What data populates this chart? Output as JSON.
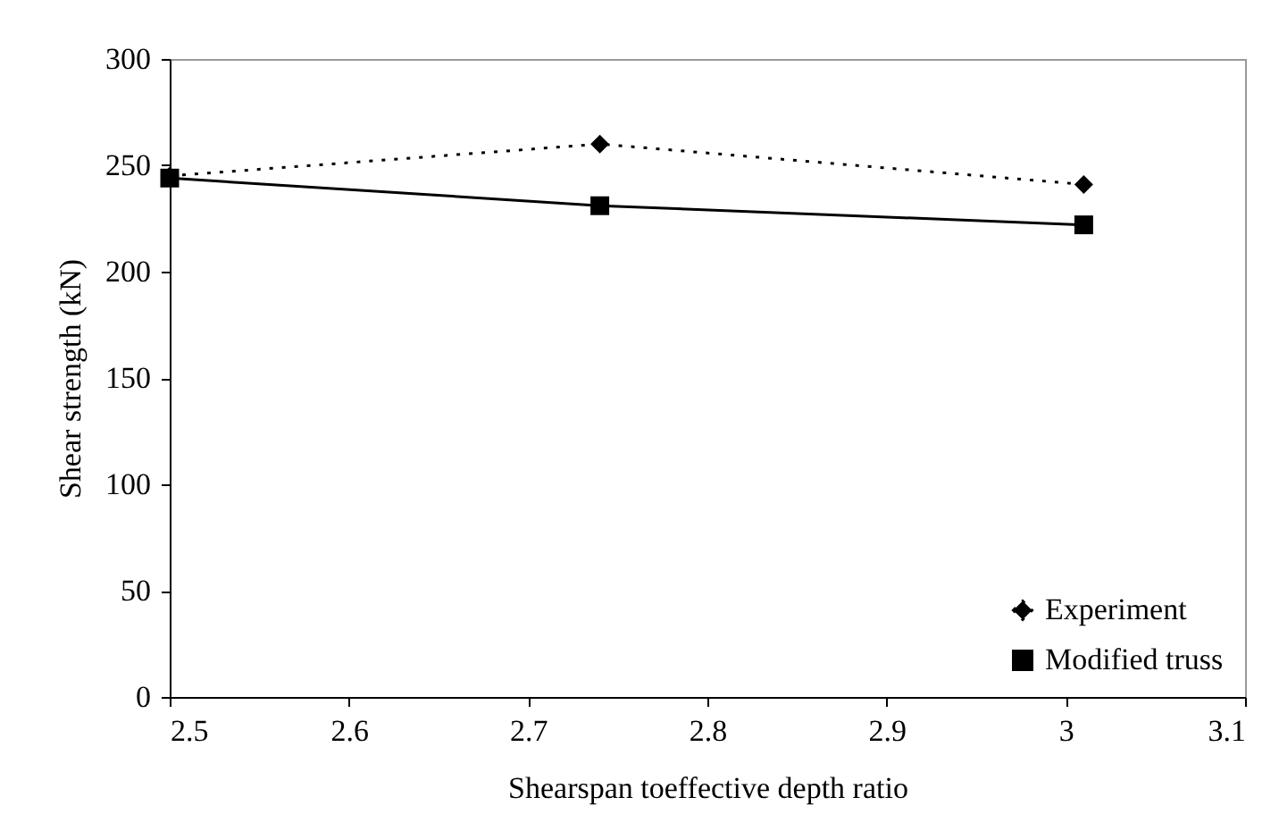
{
  "chart_data": {
    "type": "line",
    "xlabel": "Shearspan toeffective depth ratio",
    "ylabel": "Shear strength (kN)",
    "x": [
      2.5,
      2.74,
      3.01
    ],
    "series": [
      {
        "name": "Experiment",
        "color": "#000000",
        "values": [
          245,
          260,
          241
        ],
        "marker": "diamond",
        "line_style": "dotted"
      },
      {
        "name": "Modified truss",
        "color": "#000000",
        "values": [
          244,
          231,
          222
        ],
        "marker": "square",
        "line_style": "solid"
      }
    ],
    "xlim": [
      2.5,
      3.1
    ],
    "xticks": [
      2.5,
      2.6,
      2.7,
      2.8,
      2.9,
      3,
      3.1
    ],
    "ylim": [
      0,
      300
    ],
    "yticks": [
      0,
      50,
      100,
      150,
      200,
      250,
      300
    ],
    "grid": false,
    "legend": "bottom right"
  }
}
